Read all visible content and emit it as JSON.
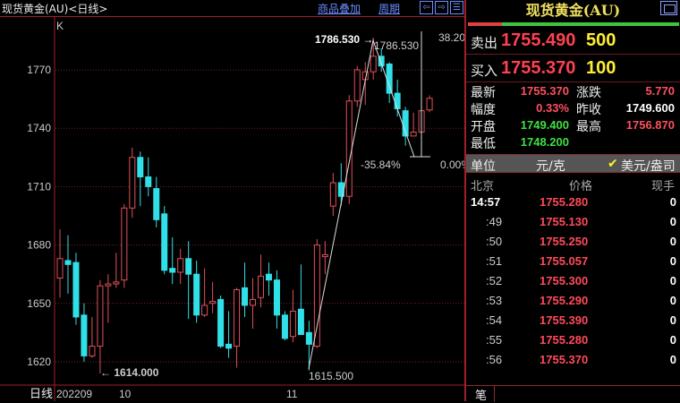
{
  "header": {
    "title": "现货黄金(AU)<日线>",
    "overlay_link": "商品叠加",
    "period_link": "周期",
    "icons": [
      "arrow-left-icon",
      "arrow-right-icon",
      "split-view-icon"
    ]
  },
  "chart_data": {
    "type": "candlestick",
    "indicator_label": "K",
    "period_label": "日线",
    "x_tick_labels": [
      "202209",
      "10",
      "11"
    ],
    "y_ticks": [
      1620,
      1650,
      1680,
      1710,
      1740,
      1770
    ],
    "ylim": [
      1605,
      1795
    ],
    "grid": true,
    "up_color": "#e0505a",
    "down_color": "#30e0e8",
    "candles": [
      [
        1663,
        1688,
        1653,
        1673
      ],
      [
        1672,
        1685,
        1655,
        1670
      ],
      [
        1671,
        1676,
        1639,
        1643
      ],
      [
        1644,
        1650,
        1620,
        1623
      ],
      [
        1623,
        1643,
        1622,
        1628
      ],
      [
        1628,
        1662,
        1614,
        1659
      ],
      [
        1659,
        1665,
        1640,
        1660
      ],
      [
        1660,
        1676,
        1658,
        1661
      ],
      [
        1662,
        1701,
        1658,
        1699
      ],
      [
        1699,
        1730,
        1694,
        1725
      ],
      [
        1725,
        1728,
        1700,
        1715
      ],
      [
        1715,
        1725,
        1705,
        1710
      ],
      [
        1709,
        1715,
        1689,
        1693
      ],
      [
        1696,
        1700,
        1665,
        1667
      ],
      [
        1668,
        1684,
        1660,
        1666
      ],
      [
        1666,
        1678,
        1660,
        1673
      ],
      [
        1673,
        1682,
        1642,
        1665
      ],
      [
        1665,
        1672,
        1640,
        1644
      ],
      [
        1644,
        1668,
        1643,
        1649
      ],
      [
        1650,
        1661,
        1645,
        1651
      ],
      [
        1652,
        1654,
        1627,
        1628
      ],
      [
        1629,
        1646,
        1622,
        1627
      ],
      [
        1628,
        1658,
        1617,
        1657
      ],
      [
        1658,
        1671,
        1643,
        1649
      ],
      [
        1649,
        1663,
        1637,
        1652
      ],
      [
        1653,
        1675,
        1648,
        1664
      ],
      [
        1665,
        1671,
        1654,
        1662
      ],
      [
        1662,
        1667,
        1637,
        1644
      ],
      [
        1644,
        1646,
        1631,
        1632
      ],
      [
        1633,
        1657,
        1630,
        1646
      ],
      [
        1647,
        1670,
        1634,
        1634
      ],
      [
        1635,
        1641,
        1615.5,
        1629
      ],
      [
        1628,
        1683,
        1627,
        1680
      ],
      [
        1674,
        1682,
        1665,
        1675
      ],
      [
        1700,
        1717,
        1695,
        1712
      ],
      [
        1712,
        1722,
        1700,
        1705
      ],
      [
        1705,
        1757,
        1701,
        1754
      ],
      [
        1754,
        1772,
        1751,
        1770
      ],
      [
        1765,
        1774,
        1752,
        1769
      ],
      [
        1769,
        1786.53,
        1765,
        1777
      ],
      [
        1777,
        1781,
        1769,
        1772
      ],
      [
        1773,
        1774,
        1753,
        1758
      ],
      [
        1758,
        1765,
        1746,
        1750
      ],
      [
        1749,
        1751,
        1731,
        1736
      ],
      [
        1736,
        1748,
        1736,
        1738
      ],
      [
        1738,
        1749,
        1738,
        1749
      ],
      [
        1749.4,
        1756.87,
        1748.2,
        1755.37
      ]
    ],
    "candle_fields": [
      "open",
      "high",
      "low",
      "close"
    ],
    "annotations": {
      "high_label": "1786.530",
      "high_label_right": "1786.530",
      "low_label": "1614.000",
      "swing_low_label": "1615.500",
      "fib_top": "38.20",
      "fib_pct": "-35.84%",
      "fib_zero": "0.00%"
    }
  },
  "quote": {
    "name": "现货黄金(AU)",
    "buy_ratio_pct": 16,
    "sell": {
      "label": "卖出",
      "price": "1755.490",
      "volume": "500"
    },
    "buy": {
      "label": "买入",
      "price": "1755.370",
      "volume": "100"
    },
    "stats": [
      {
        "label": "最新",
        "value": "1755.370",
        "color": "#ff5060"
      },
      {
        "label": "涨跌",
        "value": "5.770",
        "color": "#ff5060"
      },
      {
        "label": "幅度",
        "value": "0.33%",
        "color": "#ff5060"
      },
      {
        "label": "昨收",
        "value": "1749.600",
        "color": "#ffffff"
      },
      {
        "label": "开盘",
        "value": "1749.400",
        "color": "#40e040"
      },
      {
        "label": "最高",
        "value": "1756.870",
        "color": "#ff5060"
      },
      {
        "label": "最低",
        "value": "1748.200",
        "color": "#40e040"
      }
    ],
    "unit": {
      "label": "单位",
      "option1": "元/克",
      "option2": "美元/盎司",
      "selected": "美元/盎司"
    }
  },
  "ticks": {
    "headers": [
      "北京",
      "价格",
      "现手"
    ],
    "rows": [
      {
        "time": "14:57",
        "price": "1755.280",
        "vol": "0"
      },
      {
        "time": ":49",
        "price": "1755.130",
        "vol": "0"
      },
      {
        "time": ":50",
        "price": "1755.250",
        "vol": "0"
      },
      {
        "time": ":51",
        "price": "1755.057",
        "vol": "0"
      },
      {
        "time": ":52",
        "price": "1755.300",
        "vol": "0"
      },
      {
        "time": ":53",
        "price": "1755.290",
        "vol": "0"
      },
      {
        "time": ":54",
        "price": "1755.390",
        "vol": "0"
      },
      {
        "time": ":55",
        "price": "1755.280",
        "vol": "0"
      },
      {
        "time": ":56",
        "price": "1755.370",
        "vol": "0"
      }
    ],
    "tab": "笔"
  }
}
